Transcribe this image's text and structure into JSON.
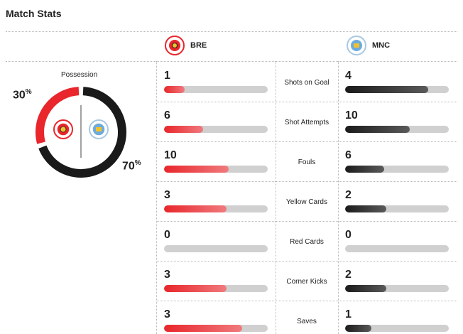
{
  "title": "Match Stats",
  "teams": {
    "home": {
      "abbr": "BRE",
      "color": "#e8262b",
      "badge_icon": "brentford-crest-icon"
    },
    "away": {
      "abbr": "MNC",
      "color": "#1a1a1a",
      "badge_icon": "manchester-city-crest-icon"
    }
  },
  "possession": {
    "label": "Possession",
    "home_pct": "30",
    "away_pct": "70",
    "home_value": 30,
    "away_value": 70
  },
  "stats": [
    {
      "label": "Shots on Goal",
      "home": "1",
      "away": "4",
      "home_num": 1,
      "away_num": 4
    },
    {
      "label": "Shot Attempts",
      "home": "6",
      "away": "10",
      "home_num": 6,
      "away_num": 10
    },
    {
      "label": "Fouls",
      "home": "10",
      "away": "6",
      "home_num": 10,
      "away_num": 6
    },
    {
      "label": "Yellow Cards",
      "home": "3",
      "away": "2",
      "home_num": 3,
      "away_num": 2
    },
    {
      "label": "Red Cards",
      "home": "0",
      "away": "0",
      "home_num": 0,
      "away_num": 0
    },
    {
      "label": "Corner Kicks",
      "home": "3",
      "away": "2",
      "home_num": 3,
      "away_num": 2
    },
    {
      "label": "Saves",
      "home": "3",
      "away": "1",
      "home_num": 3,
      "away_num": 1
    }
  ]
}
